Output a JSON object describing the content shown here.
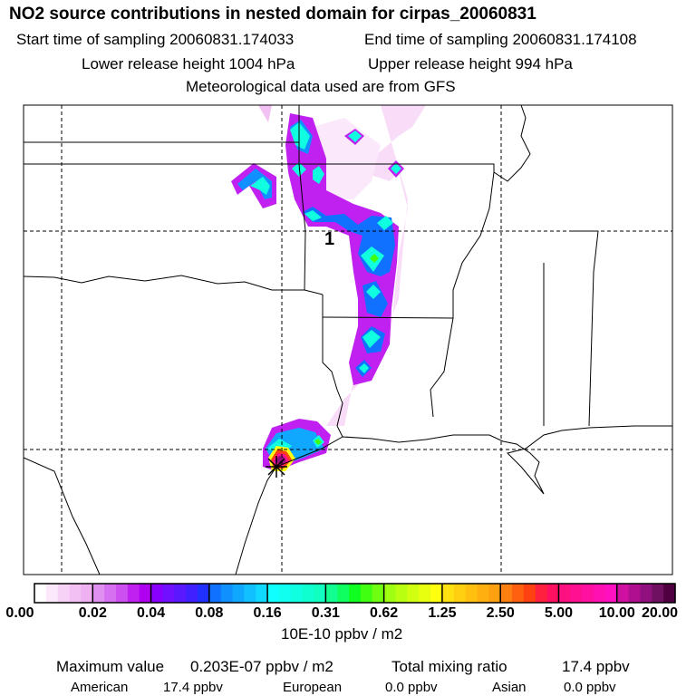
{
  "header": {
    "title": "NO2 source contributions in nested domain for cirpas_20060831",
    "start_time": "Start time of sampling 20060831.174033",
    "end_time": "End time of sampling 20060831.174108",
    "lower_release": "Lower release height 1004 hPa",
    "upper_release": "Upper release height  994 hPa",
    "met_data": "Meteorological data used are from GFS"
  },
  "map": {
    "marker_label": "1",
    "source_marker_icon": "source-location-icon"
  },
  "colorbar": {
    "labels": [
      "0.00",
      "0.02",
      "0.04",
      "0.08",
      "0.16",
      "0.31",
      "0.62",
      "1.25",
      "2.50",
      "5.00",
      "10.00",
      "20.00"
    ],
    "colors": [
      "#ffffff",
      "#fbe8fb",
      "#f6d3f6",
      "#f2c0f2",
      "#eeb0f0",
      "#e090f0",
      "#d670f0",
      "#cc50f0",
      "#c020f0",
      "#b000f0",
      "#8a00ff",
      "#7010ff",
      "#5a18ff",
      "#4020ff",
      "#2030ff",
      "#1070ff",
      "#1090ff",
      "#10a8ff",
      "#10c0ff",
      "#10d8ff",
      "#10ffff",
      "#10fff0",
      "#10ffe0",
      "#10ffd0",
      "#10ffc0",
      "#10ff90",
      "#10ff60",
      "#10ff20",
      "#40ff10",
      "#70ff10",
      "#a0ff10",
      "#b8ff10",
      "#d0ff10",
      "#e8ff10",
      "#ffff10",
      "#ffe010",
      "#ffd010",
      "#ffc010",
      "#ffb010",
      "#ffa010",
      "#ff8010",
      "#ff6010",
      "#ff4010",
      "#ff2040",
      "#ff1060",
      "#ff1080",
      "#ff1090",
      "#ff10a0",
      "#ff10b0",
      "#ff10c0",
      "#d010a0",
      "#b01090",
      "#901080",
      "#701060",
      "#500040"
    ],
    "unit": "10E-10 ppbv / m2"
  },
  "summary": {
    "max_label": "Maximum value",
    "max_value": "0.203E-07 ppbv / m2",
    "total_label": "Total mixing ratio",
    "total_value": "17.4 ppbv",
    "american_label": "American",
    "american_value": "17.4 ppbv",
    "european_label": "European",
    "european_value": "0.0 ppbv",
    "asian_label": "Asian",
    "asian_value": "0.0 ppbv"
  }
}
